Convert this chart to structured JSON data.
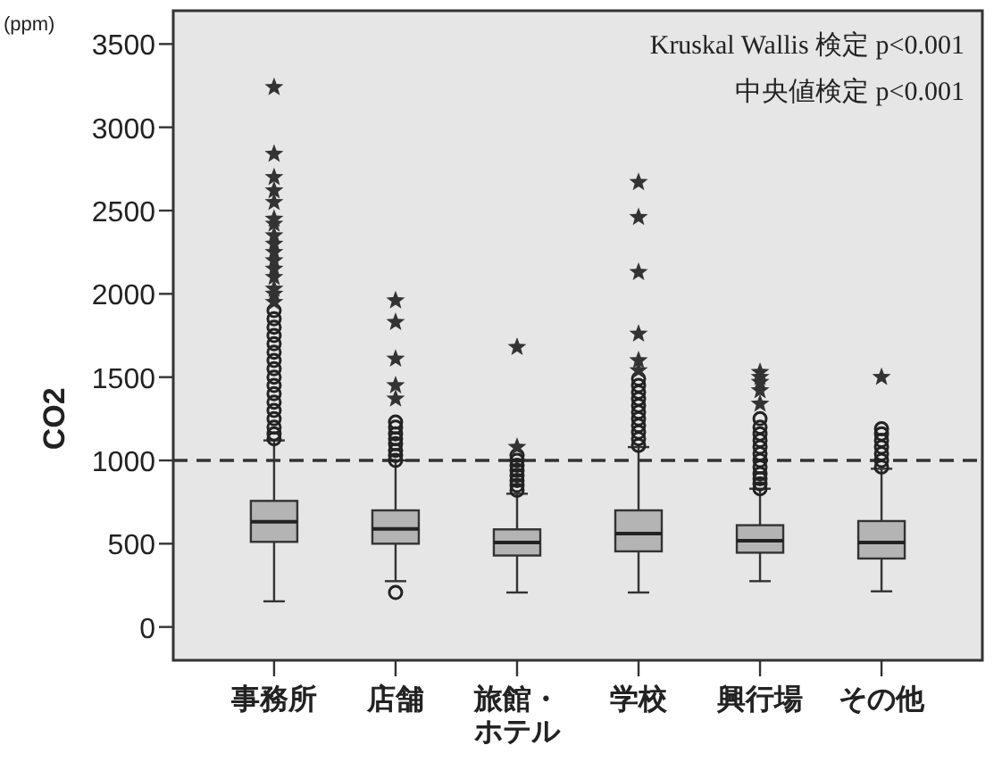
{
  "chart_data": {
    "type": "box",
    "ylabel": "CO2",
    "categories": [
      "事務所",
      "店舗",
      "旅館・ホテル",
      "学校",
      "興行場",
      "その他"
    ],
    "ylim": [
      -200,
      3700
    ],
    "yticks": [
      0,
      500,
      1000,
      1500,
      2000,
      2500,
      3000,
      3500
    ],
    "grid": false,
    "boxes": [
      {
        "low": 154,
        "q1": 511,
        "median": 632,
        "q3": 757,
        "high": 1120,
        "outliers": [
          1130,
          1160,
          1200,
          1250,
          1300,
          1350,
          1400,
          1450,
          1500,
          1550,
          1600,
          1650,
          1700,
          1750,
          1800,
          1850,
          1900
        ]
      },
      {
        "low": 275,
        "q1": 500,
        "median": 589,
        "q3": 700,
        "high": 1000,
        "outliers": [
          207,
          1000,
          1030,
          1060,
          1100,
          1130,
          1160,
          1200,
          1230
        ]
      },
      {
        "low": 207,
        "q1": 429,
        "median": 507,
        "q3": 586,
        "high": 800,
        "outliers": [
          820,
          850,
          880,
          910,
          940,
          970,
          1000,
          1030
        ]
      },
      {
        "low": 207,
        "q1": 454,
        "median": 561,
        "q3": 700,
        "high": 1080,
        "outliers": [
          1090,
          1130,
          1170,
          1210,
          1250,
          1290,
          1330,
          1370,
          1410,
          1450,
          1490
        ]
      },
      {
        "low": 275,
        "q1": 446,
        "median": 518,
        "q3": 611,
        "high": 830,
        "outliers": [
          830,
          860,
          890,
          920,
          960,
          1000,
          1040,
          1080,
          1120,
          1160,
          1200,
          1250
        ]
      },
      {
        "low": 214,
        "q1": 411,
        "median": 507,
        "q3": 636,
        "high": 950,
        "outliers": [
          960,
          1000,
          1040,
          1080,
          1120,
          1160,
          1190
        ]
      }
    ],
    "series": [
      {
        "type": "scatter",
        "marker": "star",
        "color": "#333333",
        "x": [
          "事務所",
          "事務所",
          "事務所",
          "事務所",
          "事務所",
          "事務所",
          "事務所",
          "事務所",
          "事務所",
          "事務所",
          "事務所",
          "事務所",
          "事務所",
          "事務所",
          "事務所",
          "事務所",
          "店舗",
          "店舗",
          "店舗",
          "店舗",
          "店舗",
          "旅館・ホテル",
          "旅館・ホテル",
          "学校",
          "学校",
          "学校",
          "学校",
          "学校",
          "学校",
          "興行場",
          "興行場",
          "興行場",
          "興行場",
          "興行場",
          "その他"
        ],
        "values": [
          1950,
          2000,
          2030,
          2100,
          2150,
          2200,
          2250,
          2300,
          2350,
          2420,
          2450,
          2550,
          2620,
          2700,
          2840,
          3240,
          1370,
          1450,
          1610,
          1830,
          1960,
          1080,
          1680,
          1540,
          1600,
          1760,
          2130,
          2460,
          2670,
          1340,
          1420,
          1470,
          1500,
          1530,
          1500
        ]
      }
    ],
    "ref_lines": [
      {
        "axis": "y",
        "value": 1000,
        "line_style": "dashed",
        "color": "#333333"
      }
    ],
    "annotations": [
      "(ppm)",
      "Kruskal Wallis 検定 p<0.001",
      "中央値検定 p<0.001"
    ]
  }
}
